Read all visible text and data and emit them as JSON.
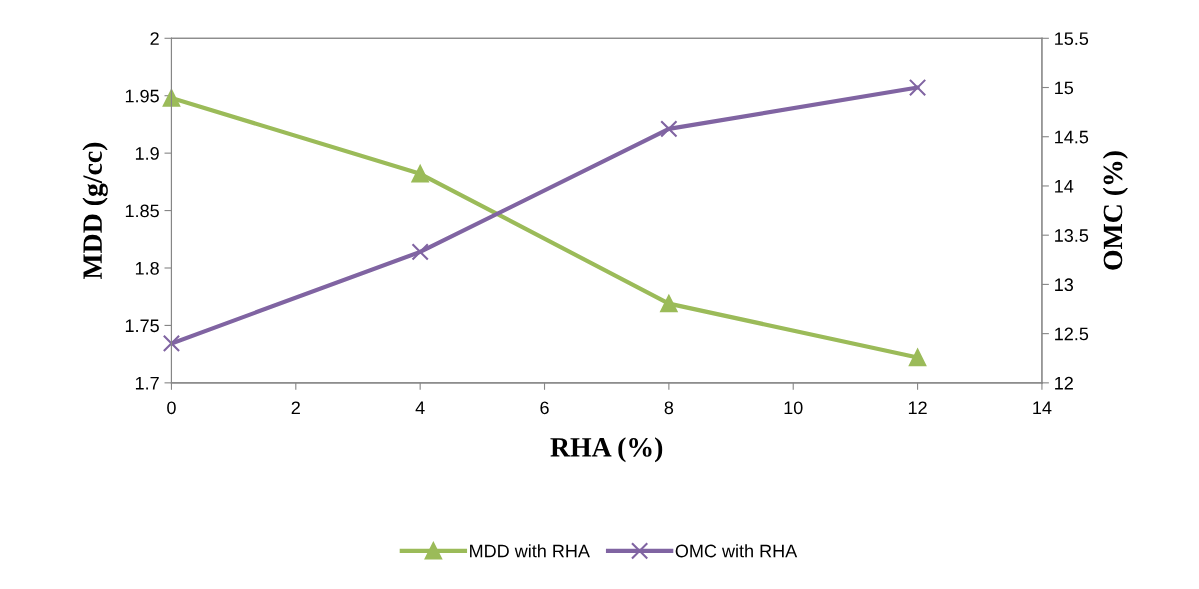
{
  "chart_data": {
    "type": "line",
    "xlabel": "RHA (%)",
    "ylabel": "MDD (g/cc)",
    "y2label": "OMC (%)",
    "x": [
      0,
      4,
      8,
      12
    ],
    "series": [
      {
        "name": "MDD with RHA",
        "color": "#9bbb59",
        "values": [
          1.948,
          1.882,
          1.769,
          1.722
        ],
        "marker": "triangle"
      },
      {
        "name": "OMC with RHA",
        "color": "#8064a2",
        "values": [
          12.4,
          13.33,
          14.58,
          15.0
        ],
        "marker": "cross",
        "axis": "y2"
      }
    ],
    "xlim": [
      0,
      14
    ],
    "xticks": [
      0,
      2,
      4,
      6,
      8,
      10,
      12,
      14
    ],
    "ylim": [
      1.7,
      2
    ],
    "yticks": [
      1.7,
      1.75,
      1.8,
      1.85,
      1.9,
      1.95,
      2
    ],
    "y2lim": [
      12,
      15.5
    ],
    "y2ticks": [
      12,
      12.5,
      13,
      13.5,
      14,
      14.5,
      15,
      15.5
    ],
    "grid": false,
    "legend": "bottom",
    "line_style": "solid"
  }
}
